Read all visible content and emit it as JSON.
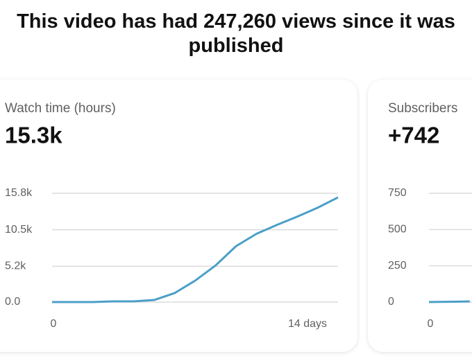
{
  "headline": "This video has had 247,260 views since it was published",
  "chart_data": [
    {
      "type": "line",
      "title": "Watch time (hours)",
      "total": "15.3k",
      "color": "#4a9fc8",
      "x": [
        0,
        1,
        2,
        3,
        4,
        5,
        6,
        7,
        8,
        9,
        10,
        11,
        12,
        13,
        14
      ],
      "values": [
        0,
        0,
        0,
        100,
        100,
        300,
        1300,
        3100,
        5300,
        8100,
        9900,
        11200,
        12400,
        13700,
        15200
      ],
      "xlim": [
        0,
        14
      ],
      "xticks": [
        0,
        {
          "value": 14,
          "label": "14 days"
        }
      ],
      "ylim": [
        0,
        15800
      ],
      "yticks": [
        {
          "value": 0,
          "label": "0.0"
        },
        {
          "value": 5200,
          "label": "5.2k"
        },
        {
          "value": 10500,
          "label": "10.5k"
        },
        {
          "value": 15800,
          "label": "15.8k"
        }
      ],
      "grid": true
    },
    {
      "type": "line",
      "title": "Subscribers",
      "total": "+742",
      "color": "#4a9fc8",
      "x": [
        0,
        1,
        2
      ],
      "values": [
        0,
        2,
        4
      ],
      "xlim": [
        0,
        14
      ],
      "xticks": [
        0
      ],
      "ylim": [
        0,
        750
      ],
      "yticks": [
        0,
        250,
        500,
        750
      ],
      "grid": true
    }
  ]
}
